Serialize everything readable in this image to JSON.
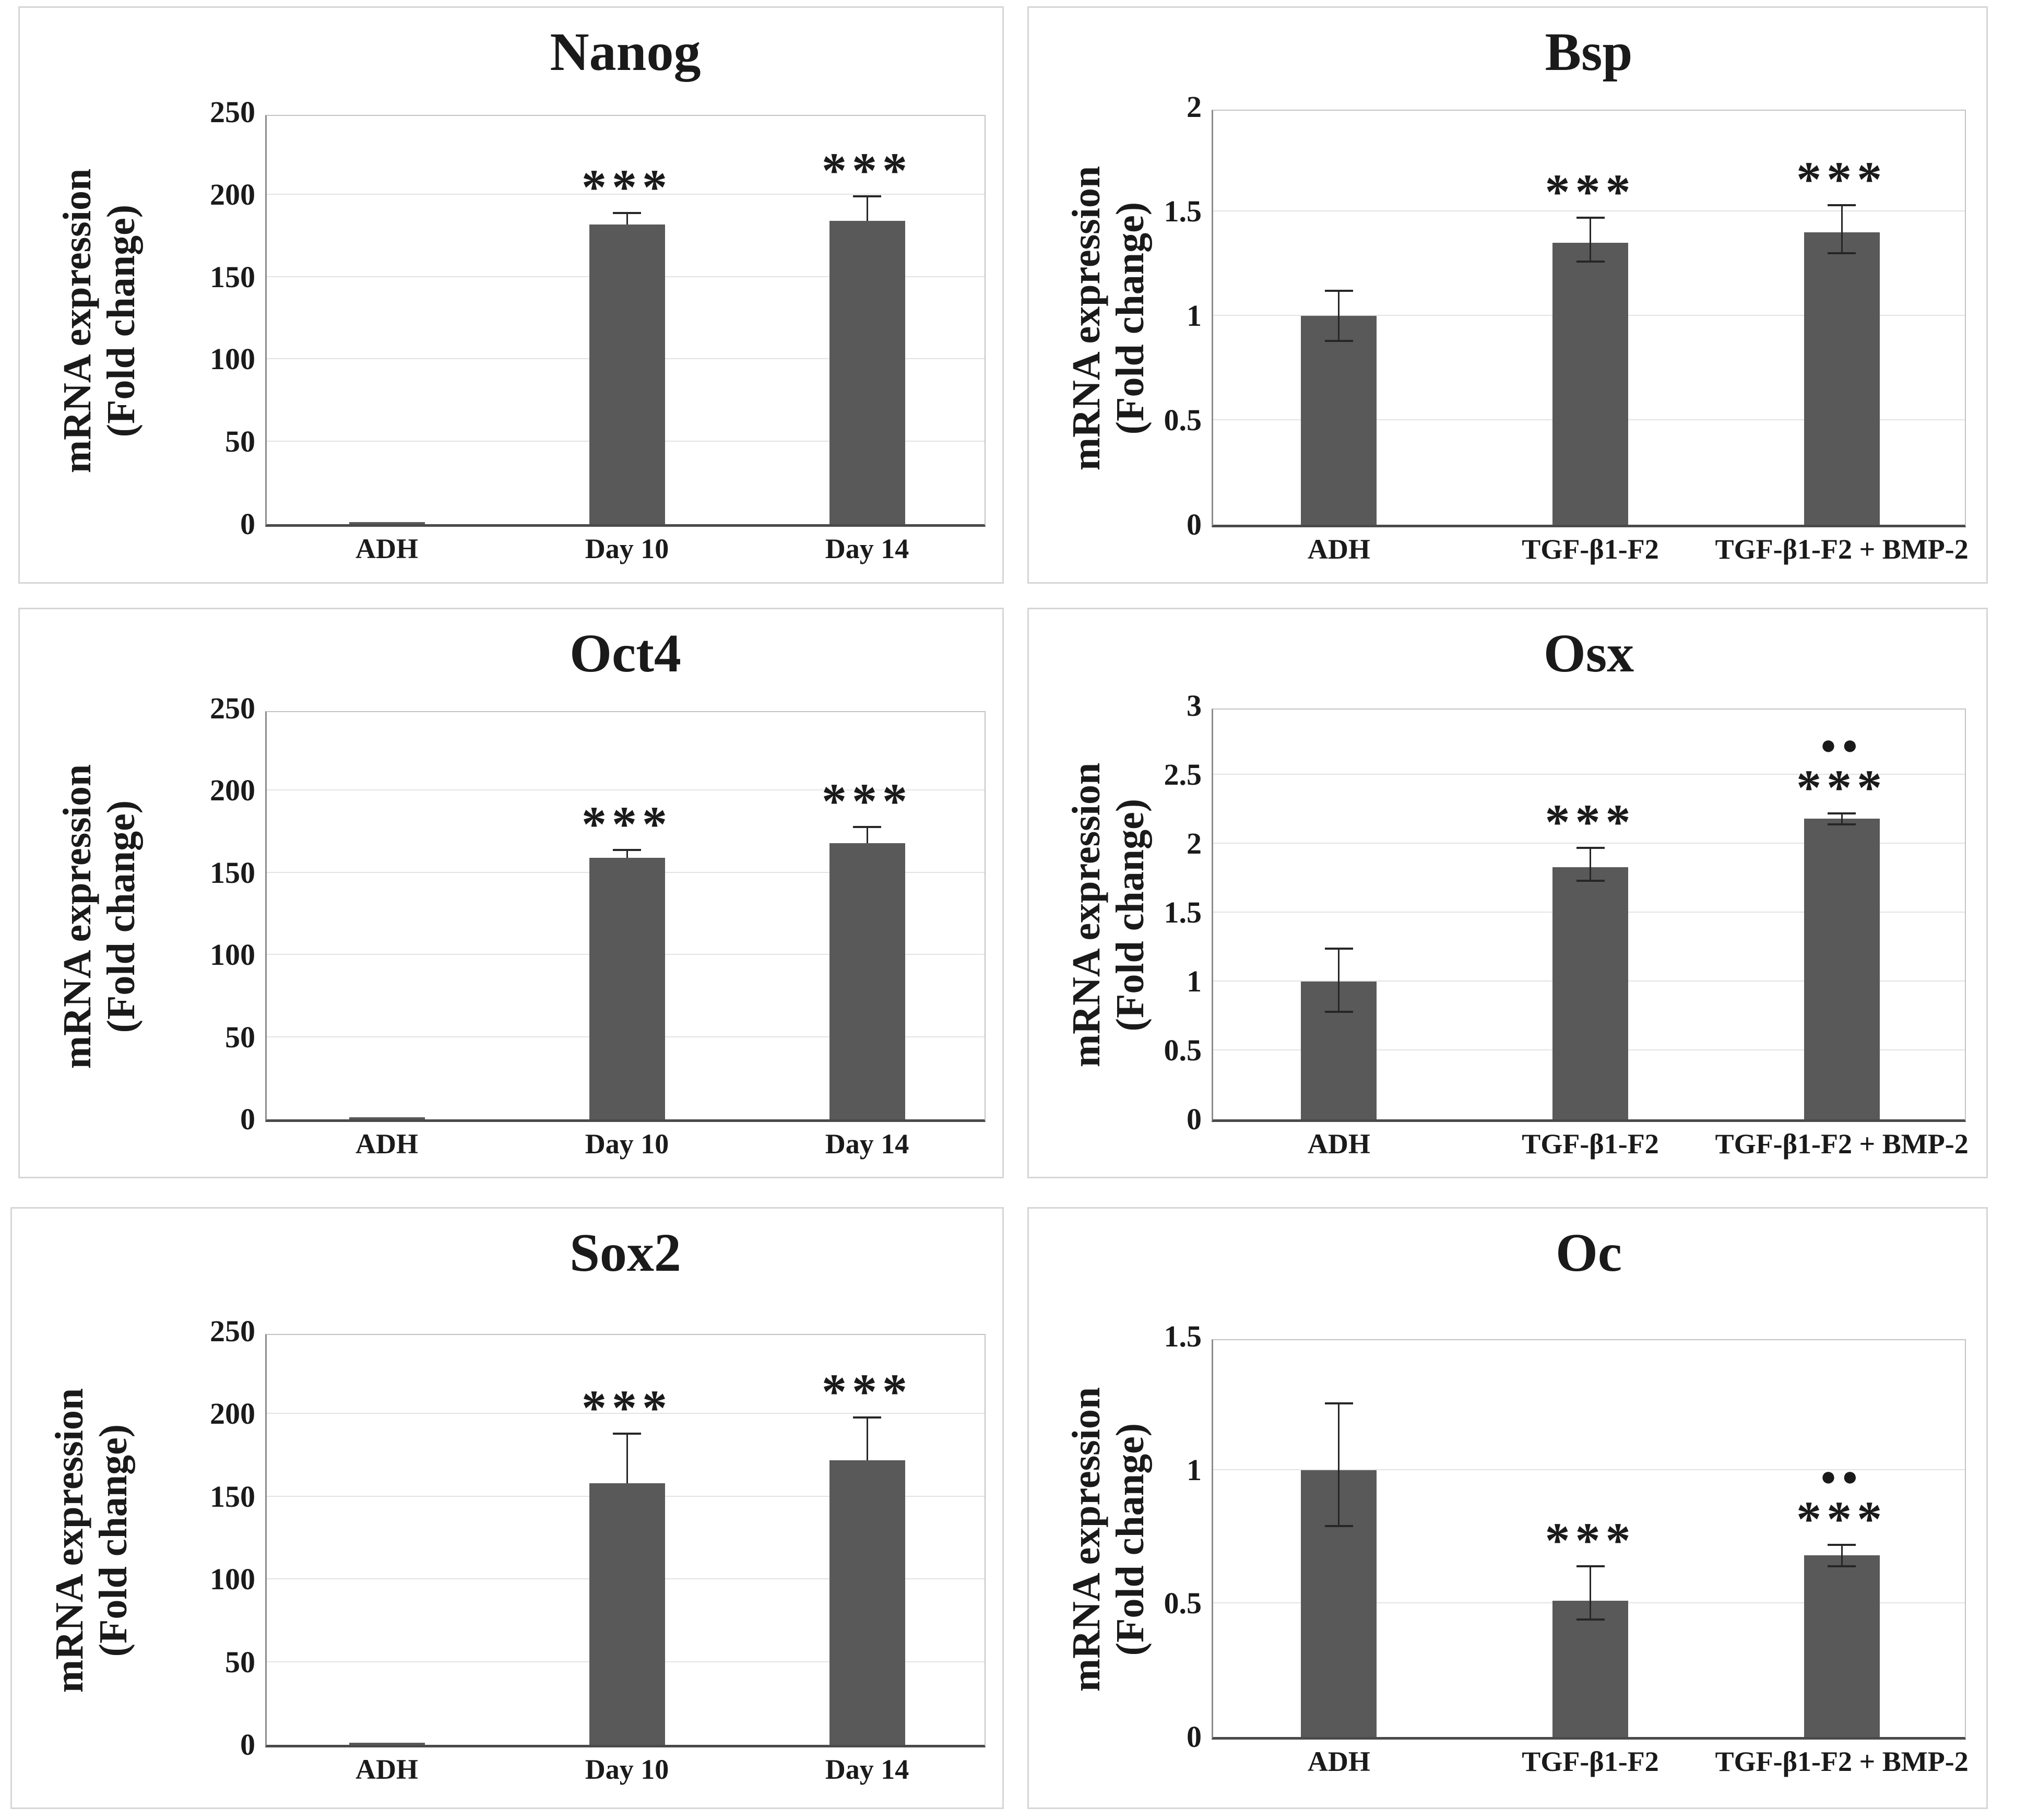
{
  "figure": {
    "description_title": "",
    "y_axis_label_line1": "mRNA expression",
    "y_axis_label_line2": "(Fold change)"
  },
  "style": {
    "bar_color": "#595959",
    "grid_color": "#e3e3e3",
    "axis_color": "#4a4a4a",
    "y_axis_line_color": "#8c8c8c",
    "plot_border_color": "#c3c3c3",
    "panel_border_color": "#d6d6d6",
    "error_bar_color": "#262626",
    "text_color": "#1a1a1a",
    "background": "#ffffff"
  },
  "chart_data": [
    {
      "type": "bar",
      "title": "Nanog",
      "ylabel_line1": "mRNA expression",
      "ylabel_line2": "(Fold change)",
      "xlabel": "",
      "ylim": [
        0,
        250
      ],
      "yticks": [
        "0",
        "50",
        "100",
        "150",
        "200",
        "250"
      ],
      "grid": true,
      "categories": [
        "ADH",
        "Day 10",
        "Day 14"
      ],
      "bars": [
        {
          "label": "ADH",
          "value": 1,
          "err_up": 0,
          "err_down": 0,
          "sig": "",
          "dots": ""
        },
        {
          "label": "Day 10",
          "value": 182,
          "err_up": 7,
          "err_down": 0,
          "sig": "***",
          "dots": ""
        },
        {
          "label": "Day 14",
          "value": 184,
          "err_up": 15,
          "err_down": 0,
          "sig": "***",
          "dots": ""
        }
      ]
    },
    {
      "type": "bar",
      "title": "Bsp",
      "ylabel_line1": "mRNA expression",
      "ylabel_line2": "(Fold change)",
      "xlabel": "",
      "ylim": [
        0,
        2
      ],
      "yticks": [
        "0",
        "0.5",
        "1",
        "1.5",
        "2"
      ],
      "grid": true,
      "categories": [
        "ADH",
        "TGF-β1-F2",
        "TGF-β1-F2 + BMP-2"
      ],
      "bars": [
        {
          "label": "ADH",
          "value": 1.0,
          "err_up": 0.12,
          "err_down": 0.12,
          "sig": "",
          "dots": ""
        },
        {
          "label": "TGF-β1-F2",
          "value": 1.35,
          "err_up": 0.12,
          "err_down": 0.09,
          "sig": "***",
          "dots": ""
        },
        {
          "label": "TGF-β1-F2 + BMP-2",
          "value": 1.4,
          "err_up": 0.13,
          "err_down": 0.1,
          "sig": "***",
          "dots": ""
        }
      ]
    },
    {
      "type": "bar",
      "title": "Oct4",
      "ylabel_line1": "mRNA expression",
      "ylabel_line2": "(Fold change)",
      "xlabel": "",
      "ylim": [
        0,
        250
      ],
      "yticks": [
        "0",
        "50",
        "100",
        "150",
        "200",
        "250"
      ],
      "grid": true,
      "categories": [
        "ADH",
        "Day 10",
        "Day 14"
      ],
      "bars": [
        {
          "label": "ADH",
          "value": 1,
          "err_up": 0,
          "err_down": 0,
          "sig": "",
          "dots": ""
        },
        {
          "label": "Day 10",
          "value": 159,
          "err_up": 5,
          "err_down": 0,
          "sig": "***",
          "dots": ""
        },
        {
          "label": "Day 14",
          "value": 168,
          "err_up": 10,
          "err_down": 0,
          "sig": "***",
          "dots": ""
        }
      ]
    },
    {
      "type": "bar",
      "title": "Osx",
      "ylabel_line1": "mRNA expression",
      "ylabel_line2": "(Fold change)",
      "xlabel": "",
      "ylim": [
        0,
        3
      ],
      "yticks": [
        "0",
        "0.5",
        "1",
        "1.5",
        "2",
        "2.5",
        "3"
      ],
      "grid": true,
      "categories": [
        "ADH",
        "TGF-β1-F2",
        "TGF-β1-F2 + BMP-2"
      ],
      "bars": [
        {
          "label": "ADH",
          "value": 1.0,
          "err_up": 0.24,
          "err_down": 0.22,
          "sig": "",
          "dots": ""
        },
        {
          "label": "TGF-β1-F2",
          "value": 1.83,
          "err_up": 0.14,
          "err_down": 0.1,
          "sig": "***",
          "dots": ""
        },
        {
          "label": "TGF-β1-F2 + BMP-2",
          "value": 2.18,
          "err_up": 0.04,
          "err_down": 0.04,
          "sig": "***",
          "dots": "●●"
        }
      ]
    },
    {
      "type": "bar",
      "title": "Sox2",
      "ylabel_line1": "mRNA expression",
      "ylabel_line2": "(Fold change)",
      "xlabel": "",
      "ylim": [
        0,
        250
      ],
      "yticks": [
        "0",
        "50",
        "100",
        "150",
        "200",
        "250"
      ],
      "grid": true,
      "categories": [
        "ADH",
        "Day 10",
        "Day 14"
      ],
      "bars": [
        {
          "label": "ADH",
          "value": 1,
          "err_up": 0,
          "err_down": 0,
          "sig": "",
          "dots": ""
        },
        {
          "label": "Day 10",
          "value": 158,
          "err_up": 30,
          "err_down": 0,
          "sig": "***",
          "dots": ""
        },
        {
          "label": "Day 14",
          "value": 172,
          "err_up": 26,
          "err_down": 0,
          "sig": "***",
          "dots": ""
        }
      ]
    },
    {
      "type": "bar",
      "title": "Oc",
      "ylabel_line1": "mRNA expression",
      "ylabel_line2": "(Fold change)",
      "xlabel": "",
      "ylim": [
        0,
        1.5
      ],
      "yticks": [
        "0",
        "0.5",
        "1",
        "1.5"
      ],
      "grid": true,
      "categories": [
        "ADH",
        "TGF-β1-F2",
        "TGF-β1-F2 + BMP-2"
      ],
      "bars": [
        {
          "label": "ADH",
          "value": 1.0,
          "err_up": 0.25,
          "err_down": 0.21,
          "sig": "",
          "dots": ""
        },
        {
          "label": "TGF-β1-F2",
          "value": 0.51,
          "err_up": 0.13,
          "err_down": 0.07,
          "sig": "***",
          "dots": ""
        },
        {
          "label": "TGF-β1-F2 + BMP-2",
          "value": 0.68,
          "err_up": 0.04,
          "err_down": 0.04,
          "sig": "***",
          "dots": "●●"
        }
      ]
    }
  ]
}
